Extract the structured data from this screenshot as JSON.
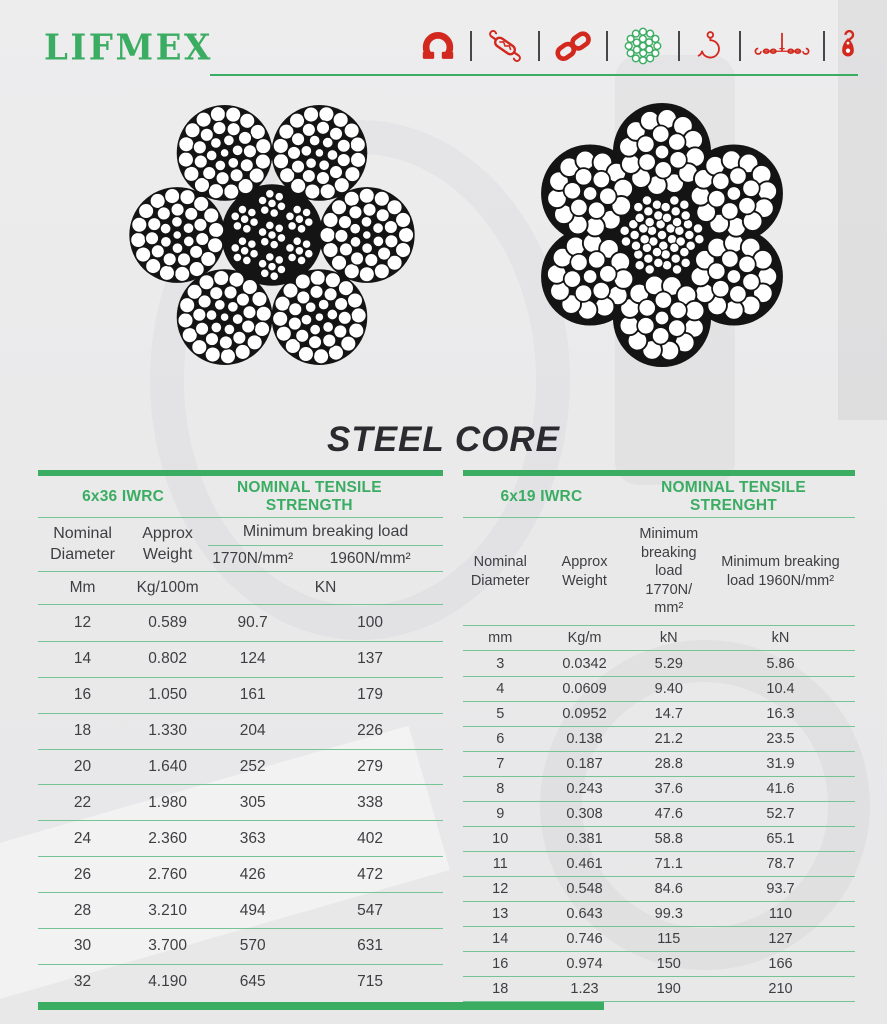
{
  "brand": {
    "logo_text": "LIFMEX"
  },
  "title": "STEEL CORE",
  "header": {
    "icons": [
      "shackle-icon",
      "turnbuckle-icon",
      "chain-links-icon",
      "wire-rope-section-icon",
      "hook-icon",
      "lifting-beam-icon",
      "pulley-block-icon"
    ]
  },
  "colors": {
    "green": "#3BAD63",
    "line_green": "#74C496",
    "red": "#D2281E",
    "text": "#3E3E42"
  },
  "table_left": {
    "name": "6x36 IWRC",
    "strength_header": "NOMINAL TENSILE STRENGTH",
    "col_headers": {
      "diameter": "Nominal Diameter",
      "weight": "Approx Weight",
      "mbl": "Minimum breaking load",
      "mbl_1770": "1770N/mm²",
      "mbl_1960": "1960N/mm²"
    },
    "units": {
      "diameter": "Mm",
      "weight": "Kg/100m",
      "load": "KN"
    },
    "rows": [
      [
        "12",
        "0.589",
        "90.7",
        "100"
      ],
      [
        "14",
        "0.802",
        "124",
        "137"
      ],
      [
        "16",
        "1.050",
        "161",
        "179"
      ],
      [
        "18",
        "1.330",
        "204",
        "226"
      ],
      [
        "20",
        "1.640",
        "252",
        "279"
      ],
      [
        "22",
        "1.980",
        "305",
        "338"
      ],
      [
        "24",
        "2.360",
        "363",
        "402"
      ],
      [
        "26",
        "2.760",
        "426",
        "472"
      ],
      [
        "28",
        "3.210",
        "494",
        "547"
      ],
      [
        "30",
        "3.700",
        "570",
        "631"
      ],
      [
        "32",
        "4.190",
        "645",
        "715"
      ]
    ]
  },
  "table_right": {
    "name": "6x19 IWRC",
    "strength_header": "NOMINAL TENSILE STRENGHT",
    "col_headers": {
      "diameter": "Nominal Diameter",
      "weight": "Approx Weight",
      "mbl_1770": "Minimum breaking load 1770N/ mm²",
      "mbl_1960": "Minimum breaking load 1960N/mm²"
    },
    "units": {
      "diameter": "mm",
      "weight": "Kg/m",
      "load_1770": "kN",
      "load_1960": "kN"
    },
    "rows": [
      [
        "3",
        "0.0342",
        "5.29",
        "5.86"
      ],
      [
        "4",
        "0.0609",
        "9.40",
        "10.4"
      ],
      [
        "5",
        "0.0952",
        "14.7",
        "16.3"
      ],
      [
        "6",
        "0.138",
        "21.2",
        "23.5"
      ],
      [
        "7",
        "0.187",
        "28.8",
        "31.9"
      ],
      [
        "8",
        "0.243",
        "37.6",
        "41.6"
      ],
      [
        "9",
        "0.308",
        "47.6",
        "52.7"
      ],
      [
        "10",
        "0.381",
        "58.8",
        "65.1"
      ],
      [
        "11",
        "0.461",
        "71.1",
        "78.7"
      ],
      [
        "12",
        "0.548",
        "84.6",
        "93.7"
      ],
      [
        "13",
        "0.643",
        "99.3",
        "110"
      ],
      [
        "14",
        "0.746",
        "115",
        "127"
      ],
      [
        "16",
        "0.974",
        "150",
        "166"
      ],
      [
        "18",
        "1.23",
        "190",
        "210"
      ]
    ]
  }
}
